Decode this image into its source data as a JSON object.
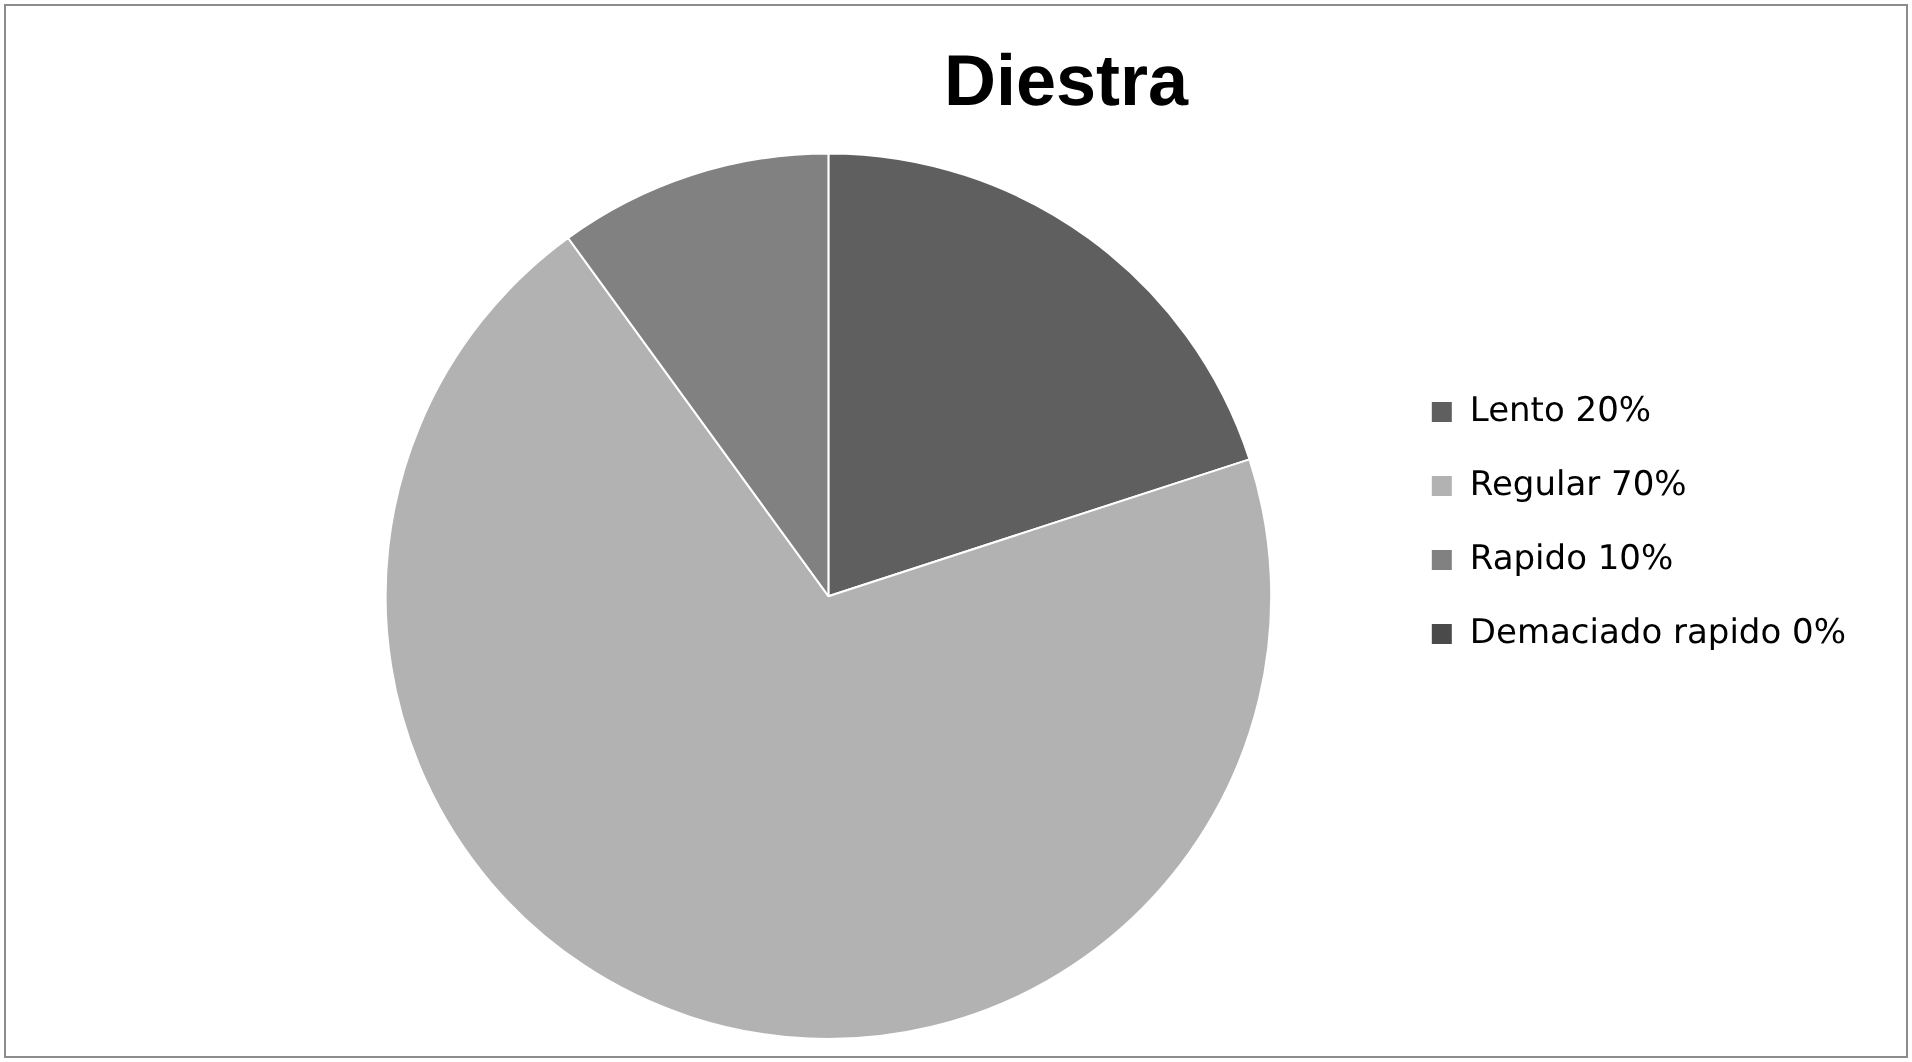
{
  "chart_data": {
    "type": "pie",
    "title": "Diestra",
    "categories": [
      "Lento 20%",
      "Regular 70%",
      "Rapido 10%",
      "Demaciado rapido 0%"
    ],
    "values": [
      20,
      70,
      10,
      0
    ],
    "colors": [
      "#5f5f5f",
      "#b2b2b2",
      "#818181",
      "#4a4a4a"
    ],
    "legend": "right"
  }
}
